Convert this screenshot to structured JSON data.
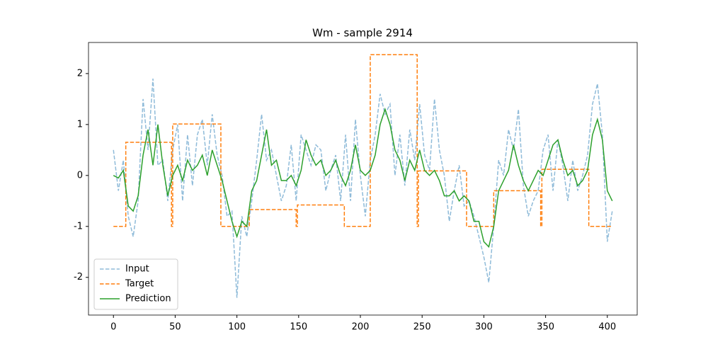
{
  "chart_data": {
    "type": "line",
    "title": "Wm - sample 2914",
    "xlim": [
      -20.2,
      424.2
    ],
    "ylim": [
      -2.74,
      2.61
    ],
    "xticks": [
      0,
      50,
      100,
      150,
      200,
      250,
      300,
      350,
      400
    ],
    "yticks": [
      -2,
      -1,
      0,
      1,
      2
    ],
    "legend": "lower left",
    "series": [
      {
        "name": "Input",
        "color": "#1f77b4",
        "alpha": 0.5,
        "style": "dashed",
        "x": [
          0,
          4,
          8,
          12,
          16,
          20,
          24,
          28,
          32,
          36,
          40,
          44,
          48,
          52,
          56,
          60,
          64,
          68,
          72,
          76,
          80,
          84,
          88,
          92,
          96,
          100,
          104,
          108,
          112,
          116,
          120,
          124,
          128,
          132,
          136,
          140,
          144,
          148,
          152,
          156,
          160,
          164,
          168,
          172,
          176,
          180,
          184,
          188,
          192,
          196,
          200,
          204,
          208,
          212,
          216,
          220,
          224,
          228,
          232,
          236,
          240,
          244,
          248,
          252,
          256,
          260,
          264,
          268,
          272,
          276,
          280,
          284,
          288,
          292,
          296,
          300,
          304,
          308,
          312,
          316,
          320,
          324,
          328,
          332,
          336,
          340,
          344,
          348,
          352,
          356,
          360,
          364,
          368,
          372,
          376,
          380,
          384,
          388,
          392,
          396,
          400,
          404
        ],
        "values": [
          0.5,
          -0.3,
          0.3,
          -0.8,
          -1.2,
          -0.5,
          1.5,
          0.5,
          1.9,
          0.2,
          0.3,
          -0.5,
          0.5,
          1.0,
          -0.5,
          0.8,
          -0.2,
          0.8,
          1.1,
          0.2,
          1.2,
          0.4,
          0.0,
          -0.8,
          -0.7,
          -2.4,
          -0.8,
          -1.2,
          -0.5,
          0.3,
          1.2,
          0.3,
          0.5,
          0.0,
          -0.5,
          -0.2,
          0.6,
          -0.5,
          0.8,
          0.5,
          0.2,
          0.6,
          0.5,
          -0.3,
          0.1,
          0.4,
          -0.5,
          0.8,
          -0.5,
          1.1,
          0.0,
          -0.8,
          0.3,
          0.8,
          1.6,
          1.2,
          1.4,
          0.0,
          0.8,
          -0.2,
          0.9,
          0.3,
          1.4,
          0.4,
          0.1,
          1.5,
          0.5,
          0.0,
          -0.9,
          -0.3,
          0.2,
          -0.6,
          -0.5,
          -0.8,
          -1.2,
          -1.6,
          -2.1,
          -1.0,
          0.3,
          0.0,
          0.9,
          0.5,
          1.3,
          -0.2,
          -0.8,
          -0.5,
          -0.3,
          0.5,
          0.8,
          -0.3,
          0.7,
          0.2,
          -0.5,
          0.3,
          -0.3,
          0.0,
          0.4,
          1.4,
          1.8,
          0.8,
          -1.3,
          -0.7
        ]
      },
      {
        "name": "Target",
        "color": "#ff7f0e",
        "alpha": 1,
        "style": "dashed",
        "x": [
          0,
          10,
          10,
          47,
          47,
          48,
          48,
          87,
          87,
          110,
          110,
          148,
          148,
          149,
          149,
          187,
          187,
          208,
          208,
          246,
          246,
          247,
          247,
          286,
          286,
          308,
          308,
          346,
          346,
          347,
          347,
          385,
          385,
          404
        ],
        "values": [
          -1,
          -1,
          0.65,
          0.65,
          -1,
          -1,
          1.01,
          1.01,
          -1,
          -1,
          -0.67,
          -0.67,
          -1,
          -1,
          -0.58,
          -0.58,
          -1,
          -1,
          2.37,
          2.37,
          -1,
          -1,
          0.09,
          0.09,
          -1,
          -1,
          -0.3,
          -0.3,
          -1,
          -1,
          0.12,
          0.12,
          -1,
          -1
        ]
      },
      {
        "name": "Prediction",
        "color": "#2ca02c",
        "alpha": 1,
        "style": "solid",
        "x": [
          0,
          4,
          8,
          12,
          16,
          20,
          24,
          28,
          32,
          36,
          40,
          44,
          48,
          52,
          56,
          60,
          64,
          68,
          72,
          76,
          80,
          84,
          88,
          92,
          96,
          100,
          104,
          108,
          112,
          116,
          120,
          124,
          128,
          132,
          136,
          140,
          144,
          148,
          152,
          156,
          160,
          164,
          168,
          172,
          176,
          180,
          184,
          188,
          192,
          196,
          200,
          204,
          208,
          212,
          216,
          220,
          224,
          228,
          232,
          236,
          240,
          244,
          248,
          252,
          256,
          260,
          264,
          268,
          272,
          276,
          280,
          284,
          288,
          292,
          296,
          300,
          304,
          308,
          312,
          316,
          320,
          324,
          328,
          332,
          336,
          340,
          344,
          348,
          352,
          356,
          360,
          364,
          368,
          372,
          376,
          380,
          384,
          388,
          392,
          396,
          400,
          404
        ],
        "values": [
          0.0,
          -0.05,
          0.1,
          -0.6,
          -0.7,
          -0.4,
          0.4,
          0.9,
          0.2,
          1.0,
          0.2,
          -0.4,
          0.0,
          0.2,
          -0.1,
          0.3,
          0.1,
          0.2,
          0.4,
          0.0,
          0.5,
          0.2,
          -0.1,
          -0.5,
          -0.9,
          -1.2,
          -0.9,
          -1.0,
          -0.3,
          -0.1,
          0.4,
          0.9,
          0.2,
          0.3,
          -0.1,
          -0.1,
          0.0,
          -0.2,
          0.1,
          0.7,
          0.4,
          0.2,
          0.3,
          0.0,
          0.1,
          0.3,
          0.0,
          -0.2,
          0.1,
          0.6,
          0.1,
          0.0,
          0.1,
          0.4,
          1.0,
          1.3,
          1.0,
          0.5,
          0.3,
          -0.1,
          0.3,
          0.1,
          0.5,
          0.1,
          0.0,
          0.1,
          -0.1,
          -0.4,
          -0.4,
          -0.3,
          -0.5,
          -0.4,
          -0.5,
          -0.9,
          -0.9,
          -1.3,
          -1.4,
          -1.0,
          -0.3,
          -0.1,
          0.1,
          0.6,
          0.2,
          -0.1,
          -0.3,
          -0.1,
          0.1,
          0.0,
          0.3,
          0.6,
          0.7,
          0.3,
          0.0,
          0.1,
          -0.2,
          -0.1,
          0.1,
          0.8,
          1.1,
          0.7,
          -0.3,
          -0.5
        ]
      }
    ]
  }
}
